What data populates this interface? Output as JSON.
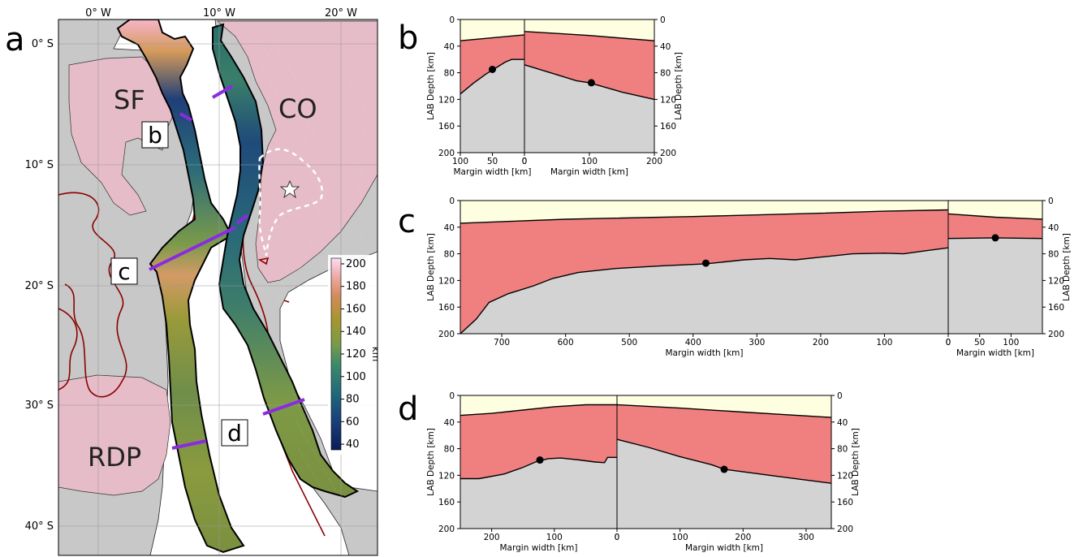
{
  "panel_letters": {
    "a": "a",
    "b": "b",
    "c": "c",
    "d": "d"
  },
  "map": {
    "lon_ticks": [
      "0° W",
      "10° W",
      "20° W"
    ],
    "lat_ticks": [
      "0° S",
      "10° S",
      "20° S",
      "30° S",
      "40° S"
    ],
    "region_labels": {
      "sf": "SF",
      "co": "CO",
      "rdp": "RDP"
    },
    "section_labels": {
      "b": "b",
      "c": "c",
      "d": "d"
    },
    "colorbar": {
      "label": "km",
      "ticks": [
        40,
        60,
        80,
        100,
        120,
        140,
        160,
        180,
        200
      ],
      "range": [
        35,
        205
      ]
    },
    "colors": {
      "ocean": "#ffffff",
      "land": "#c8c8c8",
      "craton": "#e6bcc8",
      "craton_edge": "#8b0000",
      "profile_line": "#8a2be2",
      "basin_outline": "#ffffff",
      "star": "#ffffff"
    }
  },
  "chart_data": [
    {
      "id": "b",
      "type": "area",
      "ylabel": "LAB Depth [km]",
      "ylim": [
        200,
        0
      ],
      "yticks": [
        0,
        40,
        80,
        120,
        160,
        200
      ],
      "colors": {
        "upper": "#fefee0",
        "lithosphere": "#f08080",
        "asthenosphere": "#d3d3d3"
      },
      "segments": [
        {
          "xlabel": "Margin width [km]",
          "xlim": [
            100,
            0
          ],
          "xticks": [
            100,
            50,
            0
          ],
          "xticklabels": [
            "100",
            "50",
            "0"
          ],
          "top": [
            [
              100,
              32
            ],
            [
              0,
              23
            ]
          ],
          "lab": [
            [
              100,
              112
            ],
            [
              80,
              96
            ],
            [
              60,
              82
            ],
            [
              50,
              76
            ],
            [
              40,
              70
            ],
            [
              30,
              64
            ],
            [
              20,
              60
            ],
            [
              0,
              60
            ]
          ],
          "marker": [
            50,
            75
          ],
          "yaxis_side": "left"
        },
        {
          "xlabel": "Margin width [km]",
          "xlim": [
            0,
            200
          ],
          "xticks": [
            0,
            100,
            200
          ],
          "xticklabels": [
            "0",
            "100",
            "200"
          ],
          "top": [
            [
              0,
              18
            ],
            [
              50,
              21
            ],
            [
              100,
              24
            ],
            [
              150,
              28
            ],
            [
              200,
              32
            ]
          ],
          "lab": [
            [
              0,
              68
            ],
            [
              40,
              80
            ],
            [
              80,
              92
            ],
            [
              100,
              95
            ],
            [
              150,
              109
            ],
            [
              200,
              120
            ]
          ],
          "marker": [
            103,
            95
          ],
          "yaxis_side": "right"
        }
      ]
    },
    {
      "id": "c",
      "type": "area",
      "ylabel": "LAB Depth [km]",
      "ylim": [
        200,
        0
      ],
      "yticks": [
        0,
        40,
        80,
        120,
        160,
        200
      ],
      "colors": {
        "upper": "#fefee0",
        "lithosphere": "#f08080",
        "asthenosphere": "#d3d3d3"
      },
      "segments": [
        {
          "xlabel": "Margin width [km]",
          "xlim": [
            765,
            0
          ],
          "xticks": [
            700,
            600,
            500,
            400,
            300,
            200,
            100,
            0
          ],
          "xticklabels": [
            "700",
            "600",
            "500",
            "400",
            "300",
            "200",
            "100",
            "0"
          ],
          "top": [
            [
              765,
              34
            ],
            [
              600,
              28
            ],
            [
              400,
              24
            ],
            [
              200,
              19
            ],
            [
              100,
              16
            ],
            [
              0,
              14
            ]
          ],
          "lab": [
            [
              765,
              200
            ],
            [
              740,
              178
            ],
            [
              720,
              153
            ],
            [
              690,
              140
            ],
            [
              650,
              128
            ],
            [
              620,
              117
            ],
            [
              580,
              108
            ],
            [
              520,
              102
            ],
            [
              450,
              98
            ],
            [
              380,
              95
            ],
            [
              320,
              89
            ],
            [
              280,
              87
            ],
            [
              240,
              89
            ],
            [
              200,
              85
            ],
            [
              150,
              80
            ],
            [
              100,
              79
            ],
            [
              70,
              80
            ],
            [
              40,
              76
            ],
            [
              0,
              71
            ]
          ],
          "marker": [
            380,
            94
          ],
          "yaxis_side": "left"
        },
        {
          "xlabel": "Margin width [km]",
          "xlim": [
            0,
            150
          ],
          "xticks": [
            0,
            50,
            100
          ],
          "xticklabels": [
            "0",
            "50",
            "100"
          ],
          "top": [
            [
              0,
              20
            ],
            [
              75,
              25
            ],
            [
              150,
              28
            ]
          ],
          "lab": [
            [
              0,
              57
            ],
            [
              75,
              56
            ],
            [
              150,
              57
            ]
          ],
          "marker": [
            75,
            56
          ],
          "yaxis_side": "right"
        }
      ]
    },
    {
      "id": "d",
      "type": "area",
      "ylabel": "LAB Depth [km]",
      "ylim": [
        200,
        0
      ],
      "yticks": [
        0,
        40,
        80,
        120,
        160,
        200
      ],
      "colors": {
        "upper": "#fefee0",
        "lithosphere": "#f08080",
        "asthenosphere": "#d3d3d3"
      },
      "segments": [
        {
          "xlabel": "Margin width [km]",
          "xlim": [
            250,
            0
          ],
          "xticks": [
            200,
            100,
            0
          ],
          "xticklabels": [
            "200",
            "100",
            "0"
          ],
          "top": [
            [
              250,
              30
            ],
            [
              200,
              27
            ],
            [
              150,
              22
            ],
            [
              100,
              17
            ],
            [
              50,
              14
            ],
            [
              0,
              14
            ]
          ],
          "lab": [
            [
              250,
              125
            ],
            [
              220,
              125
            ],
            [
              180,
              118
            ],
            [
              150,
              108
            ],
            [
              130,
              100
            ],
            [
              110,
              95
            ],
            [
              90,
              94
            ],
            [
              60,
              97
            ],
            [
              35,
              100
            ],
            [
              20,
              101
            ],
            [
              15,
              93
            ],
            [
              0,
              93
            ]
          ],
          "marker": [
            123,
            97
          ],
          "yaxis_side": "left"
        },
        {
          "xlabel": "Margin width [km]",
          "xlim": [
            0,
            340
          ],
          "xticks": [
            0,
            100,
            200,
            300
          ],
          "xticklabels": [
            "0",
            "100",
            "200",
            "300"
          ],
          "top": [
            [
              0,
              14
            ],
            [
              100,
              19
            ],
            [
              200,
              25
            ],
            [
              340,
              33
            ]
          ],
          "lab": [
            [
              0,
              66
            ],
            [
              50,
              78
            ],
            [
              100,
              92
            ],
            [
              150,
              104
            ],
            [
              170,
              111
            ],
            [
              250,
              121
            ],
            [
              340,
              132
            ]
          ],
          "marker": [
            170,
            111
          ],
          "yaxis_side": "right"
        }
      ]
    }
  ]
}
